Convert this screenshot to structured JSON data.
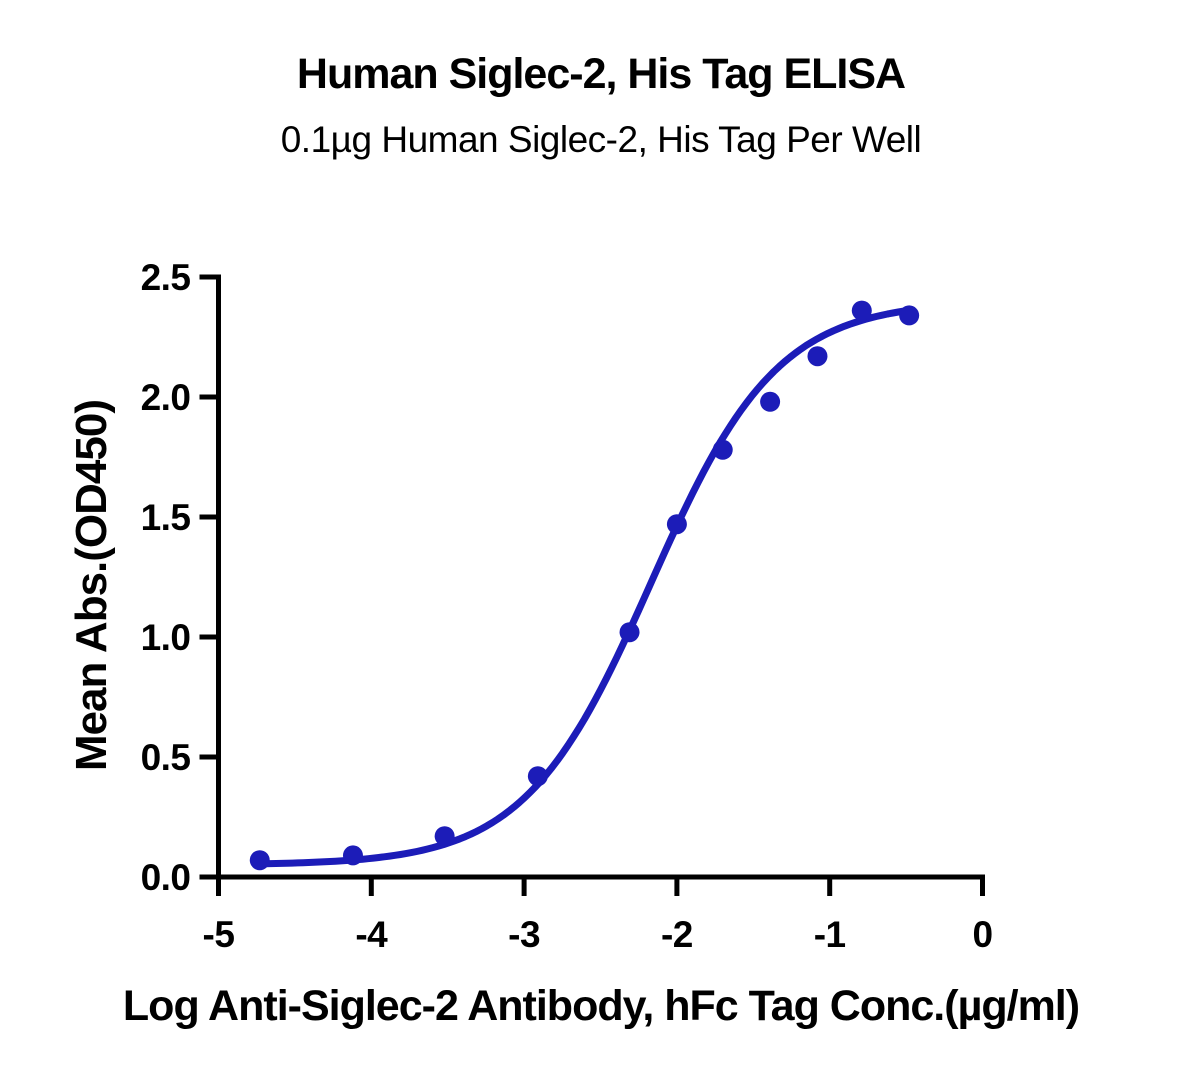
{
  "chart_data": {
    "type": "scatter",
    "title": "Human Siglec-2, His Tag ELISA",
    "subtitle": "0.1µg Human Siglec-2, His Tag Per Well",
    "xlabel": "Log Anti-Siglec-2 Antibody, hFc Tag Conc.(µg/ml)",
    "ylabel": "Mean Abs.(OD450)",
    "xlim": [
      -5,
      0
    ],
    "ylim": [
      0,
      2.5
    ],
    "x_ticks": [
      -5,
      -4,
      -3,
      -2,
      -1,
      0
    ],
    "x_tick_labels": [
      "-5",
      "-4",
      "-3",
      "-2",
      "-1",
      "0"
    ],
    "y_ticks": [
      0,
      0.5,
      1,
      1.5,
      2,
      2.5
    ],
    "y_tick_labels": [
      "0.0",
      "0.5",
      "1.0",
      "1.5",
      "2.0",
      "2.5"
    ],
    "grid": false,
    "legend": "none",
    "series": [
      {
        "x": [
          -4.73,
          -4.12,
          -3.52,
          -2.91,
          -2.31,
          -2.0,
          -1.7,
          -1.39,
          -1.08,
          -0.79,
          -0.48
        ],
        "y": [
          0.07,
          0.09,
          0.17,
          0.42,
          1.02,
          1.47,
          1.78,
          1.98,
          2.17,
          2.36,
          2.34
        ]
      }
    ],
    "fit_curve_4pl": {
      "bottom": 0.05,
      "top": 2.4,
      "logec50": -2.17,
      "hill": 1.05,
      "x_start": -4.73,
      "x_end": -0.48
    },
    "colors": {
      "curve": "#1c1cb8",
      "axis": "#000000",
      "background": "#ffffff"
    }
  }
}
